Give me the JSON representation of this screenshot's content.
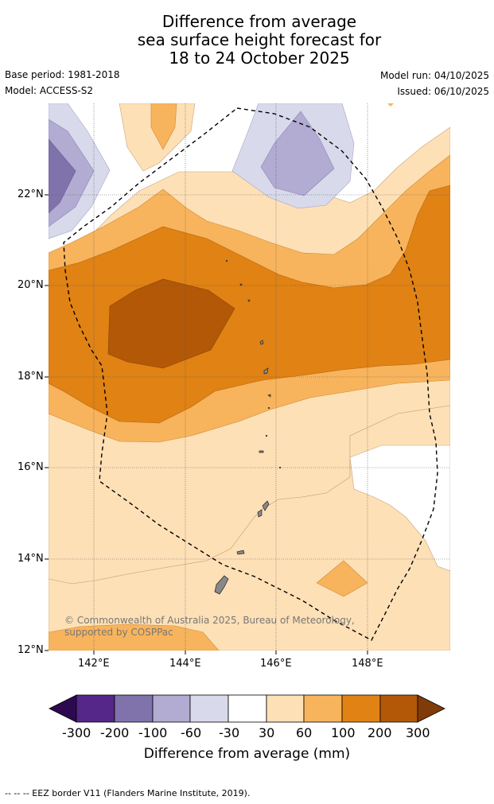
{
  "title": {
    "line1": "Difference from average",
    "line2": "sea surface height forecast for",
    "line3": "18 to 24 October 2025"
  },
  "meta": {
    "base_period": "Base period: 1981-2018",
    "model": "Model: ACCESS-S2",
    "model_run": "Model run: 04/10/2025",
    "issued": "Issued: 06/10/2025"
  },
  "map": {
    "lat_labels": [
      "22°N",
      "20°N",
      "18°N",
      "16°N",
      "14°N",
      "12°N"
    ],
    "lon_labels": [
      "142°E",
      "144°E",
      "146°E",
      "148°E"
    ],
    "copyright": "© Commonwealth of Australia 2025, Bureau of Meteorology, supported by COSPPac"
  },
  "colorbar": {
    "ticks": [
      "-300",
      "-200",
      "-100",
      "-60",
      "-30",
      "30",
      "60",
      "100",
      "200",
      "300"
    ],
    "title": "Difference from average (mm)",
    "colors": [
      "#2d0a4f",
      "#542788",
      "#8073ac",
      "#b2abd2",
      "#d8daeb",
      "#ffffff",
      "#fee0b6",
      "#f8b45c",
      "#e08214",
      "#b35806",
      "#7f3b08"
    ]
  },
  "legend": {
    "eez_note": "--  --  -- EEZ border V11 (Flanders Marine Institute, 2019)."
  }
}
